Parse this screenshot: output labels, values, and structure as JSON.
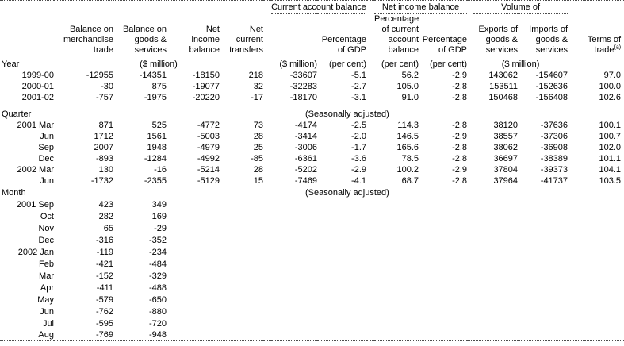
{
  "theme": {
    "background": "#ffffff",
    "text": "#000000",
    "rule": "#4d4d4d"
  },
  "table": {
    "row_label_header": "Year",
    "groups": [
      {
        "label": "Current account balance"
      },
      {
        "label": "Net income balance"
      },
      {
        "label": "Volume of"
      }
    ],
    "columns": {
      "merch_trade": "Balance on\nmerchandise\ntrade",
      "goods_services": "Balance on\ngoods &\nservices",
      "net_income": "Net\nincome\nbalance",
      "net_transfers": "Net\ncurrent\ntransfers",
      "cab_pct_gdp": "Percentage\nof GDP",
      "nib_pct_cab": "Percentage\nof current\naccount\nbalance",
      "nib_pct_gdp": "Percentage\nof GDP",
      "exports": "Exports of\ngoods &\nservices",
      "imports": "Imports of\ngoods &\nservices",
      "terms_of_trade": "Terms of\ntrade",
      "terms_of_trade_footnote": "(a)"
    },
    "units": {
      "main": "($ million)",
      "cab": "($ million)",
      "cab_pct": "(per cent)",
      "nib_pct_cab": "(per cent)",
      "nib_pct_gdp": "(per cent)",
      "volume": "($ million)"
    },
    "sections": [
      {
        "label": "Year",
        "note": "",
        "show_header_row": false,
        "rows": [
          {
            "label": "1999-00",
            "values": [
              "-12955",
              "-14351",
              "-18150",
              "218",
              "-33607",
              "-5.1",
              "56.2",
              "-2.9",
              "143062",
              "-154607",
              "97.0"
            ]
          },
          {
            "label": "2000-01",
            "values": [
              "-30",
              "875",
              "-19077",
              "32",
              "-32283",
              "-2.7",
              "105.0",
              "-2.8",
              "153511",
              "-152636",
              "100.0"
            ]
          },
          {
            "label": "2001-02",
            "values": [
              "-757",
              "-1975",
              "-20220",
              "-17",
              "-18170",
              "-3.1",
              "91.0",
              "-2.8",
              "150468",
              "-156408",
              "102.6"
            ]
          }
        ]
      },
      {
        "label": "Quarter",
        "note": "(Seasonally adjusted)",
        "show_header_row": true,
        "rows": [
          {
            "label": "2001 Mar",
            "values": [
              "871",
              "525",
              "-4772",
              "73",
              "-4174",
              "-2.5",
              "114.3",
              "-2.8",
              "38120",
              "-37636",
              "100.1"
            ]
          },
          {
            "label": "Jun",
            "values": [
              "1712",
              "1561",
              "-5003",
              "28",
              "-3414",
              "-2.0",
              "146.5",
              "-2.9",
              "38557",
              "-37306",
              "100.7"
            ]
          },
          {
            "label": "Sep",
            "values": [
              "2007",
              "1948",
              "-4979",
              "25",
              "-3006",
              "-1.7",
              "165.6",
              "-2.8",
              "38062",
              "-36908",
              "102.0"
            ]
          },
          {
            "label": "Dec",
            "values": [
              "-893",
              "-1284",
              "-4992",
              "-85",
              "-6361",
              "-3.6",
              "78.5",
              "-2.8",
              "36697",
              "-38389",
              "101.1"
            ]
          },
          {
            "label": "2002 Mar",
            "values": [
              "130",
              "-16",
              "-5214",
              "28",
              "-5202",
              "-2.9",
              "100.2",
              "-2.9",
              "37804",
              "-39373",
              "104.1"
            ]
          },
          {
            "label": "Jun",
            "values": [
              "-1732",
              "-2355",
              "-5129",
              "15",
              "-7469",
              "-4.1",
              "68.7",
              "-2.8",
              "37964",
              "-41737",
              "103.5"
            ]
          }
        ]
      },
      {
        "label": "Month",
        "note": "(Seasonally adjusted)",
        "show_header_row": true,
        "rows": [
          {
            "label": "2001 Sep",
            "values": [
              "423",
              "349"
            ]
          },
          {
            "label": "Oct",
            "values": [
              "282",
              "169"
            ]
          },
          {
            "label": "Nov",
            "values": [
              "65",
              "-29"
            ]
          },
          {
            "label": "Dec",
            "values": [
              "-316",
              "-352"
            ]
          },
          {
            "label": "2002 Jan",
            "values": [
              "-119",
              "-234"
            ]
          },
          {
            "label": "Feb",
            "values": [
              "-421",
              "-484"
            ]
          },
          {
            "label": "Mar",
            "values": [
              "-152",
              "-329"
            ]
          },
          {
            "label": "Apr",
            "values": [
              "-411",
              "-488"
            ]
          },
          {
            "label": "May",
            "values": [
              "-579",
              "-650"
            ]
          },
          {
            "label": "Jun",
            "values": [
              "-762",
              "-880"
            ]
          },
          {
            "label": "Jul",
            "values": [
              "-595",
              "-720"
            ]
          },
          {
            "label": "Aug",
            "values": [
              "-769",
              "-948"
            ]
          }
        ]
      }
    ]
  }
}
